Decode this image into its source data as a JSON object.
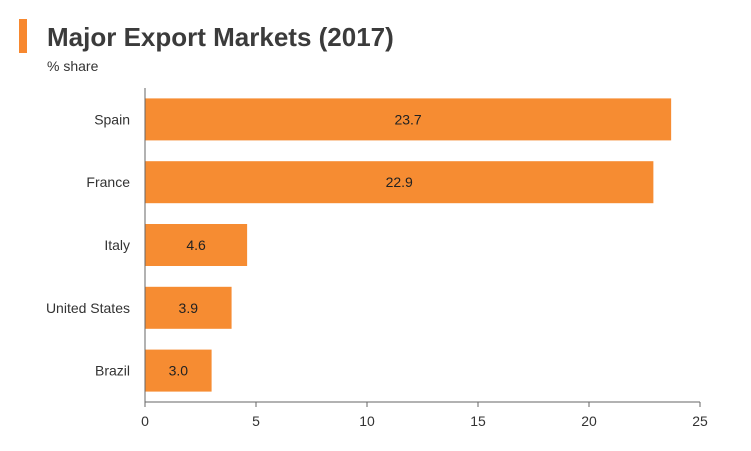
{
  "header": {
    "title": "Major Export Markets (2017)",
    "subtitle": "% share",
    "accent_color": "#F7882F"
  },
  "colors": {
    "bar": "#F68C32",
    "axis": "#666666",
    "label": "#222222"
  },
  "chart_data": {
    "type": "bar",
    "orientation": "horizontal",
    "title": "Major Export Markets (2017)",
    "ylabel": "% share",
    "categories": [
      "Spain",
      "France",
      "Italy",
      "United States",
      "Brazil"
    ],
    "values": [
      23.7,
      22.9,
      4.6,
      3.9,
      3.0
    ],
    "value_labels": [
      "23.7",
      "22.9",
      "4.6",
      "3.9",
      "3.0"
    ],
    "xlim": [
      0,
      25
    ],
    "xticks": [
      "0",
      "5",
      "10",
      "15",
      "20",
      "25"
    ],
    "grid": false,
    "legend": "none"
  }
}
